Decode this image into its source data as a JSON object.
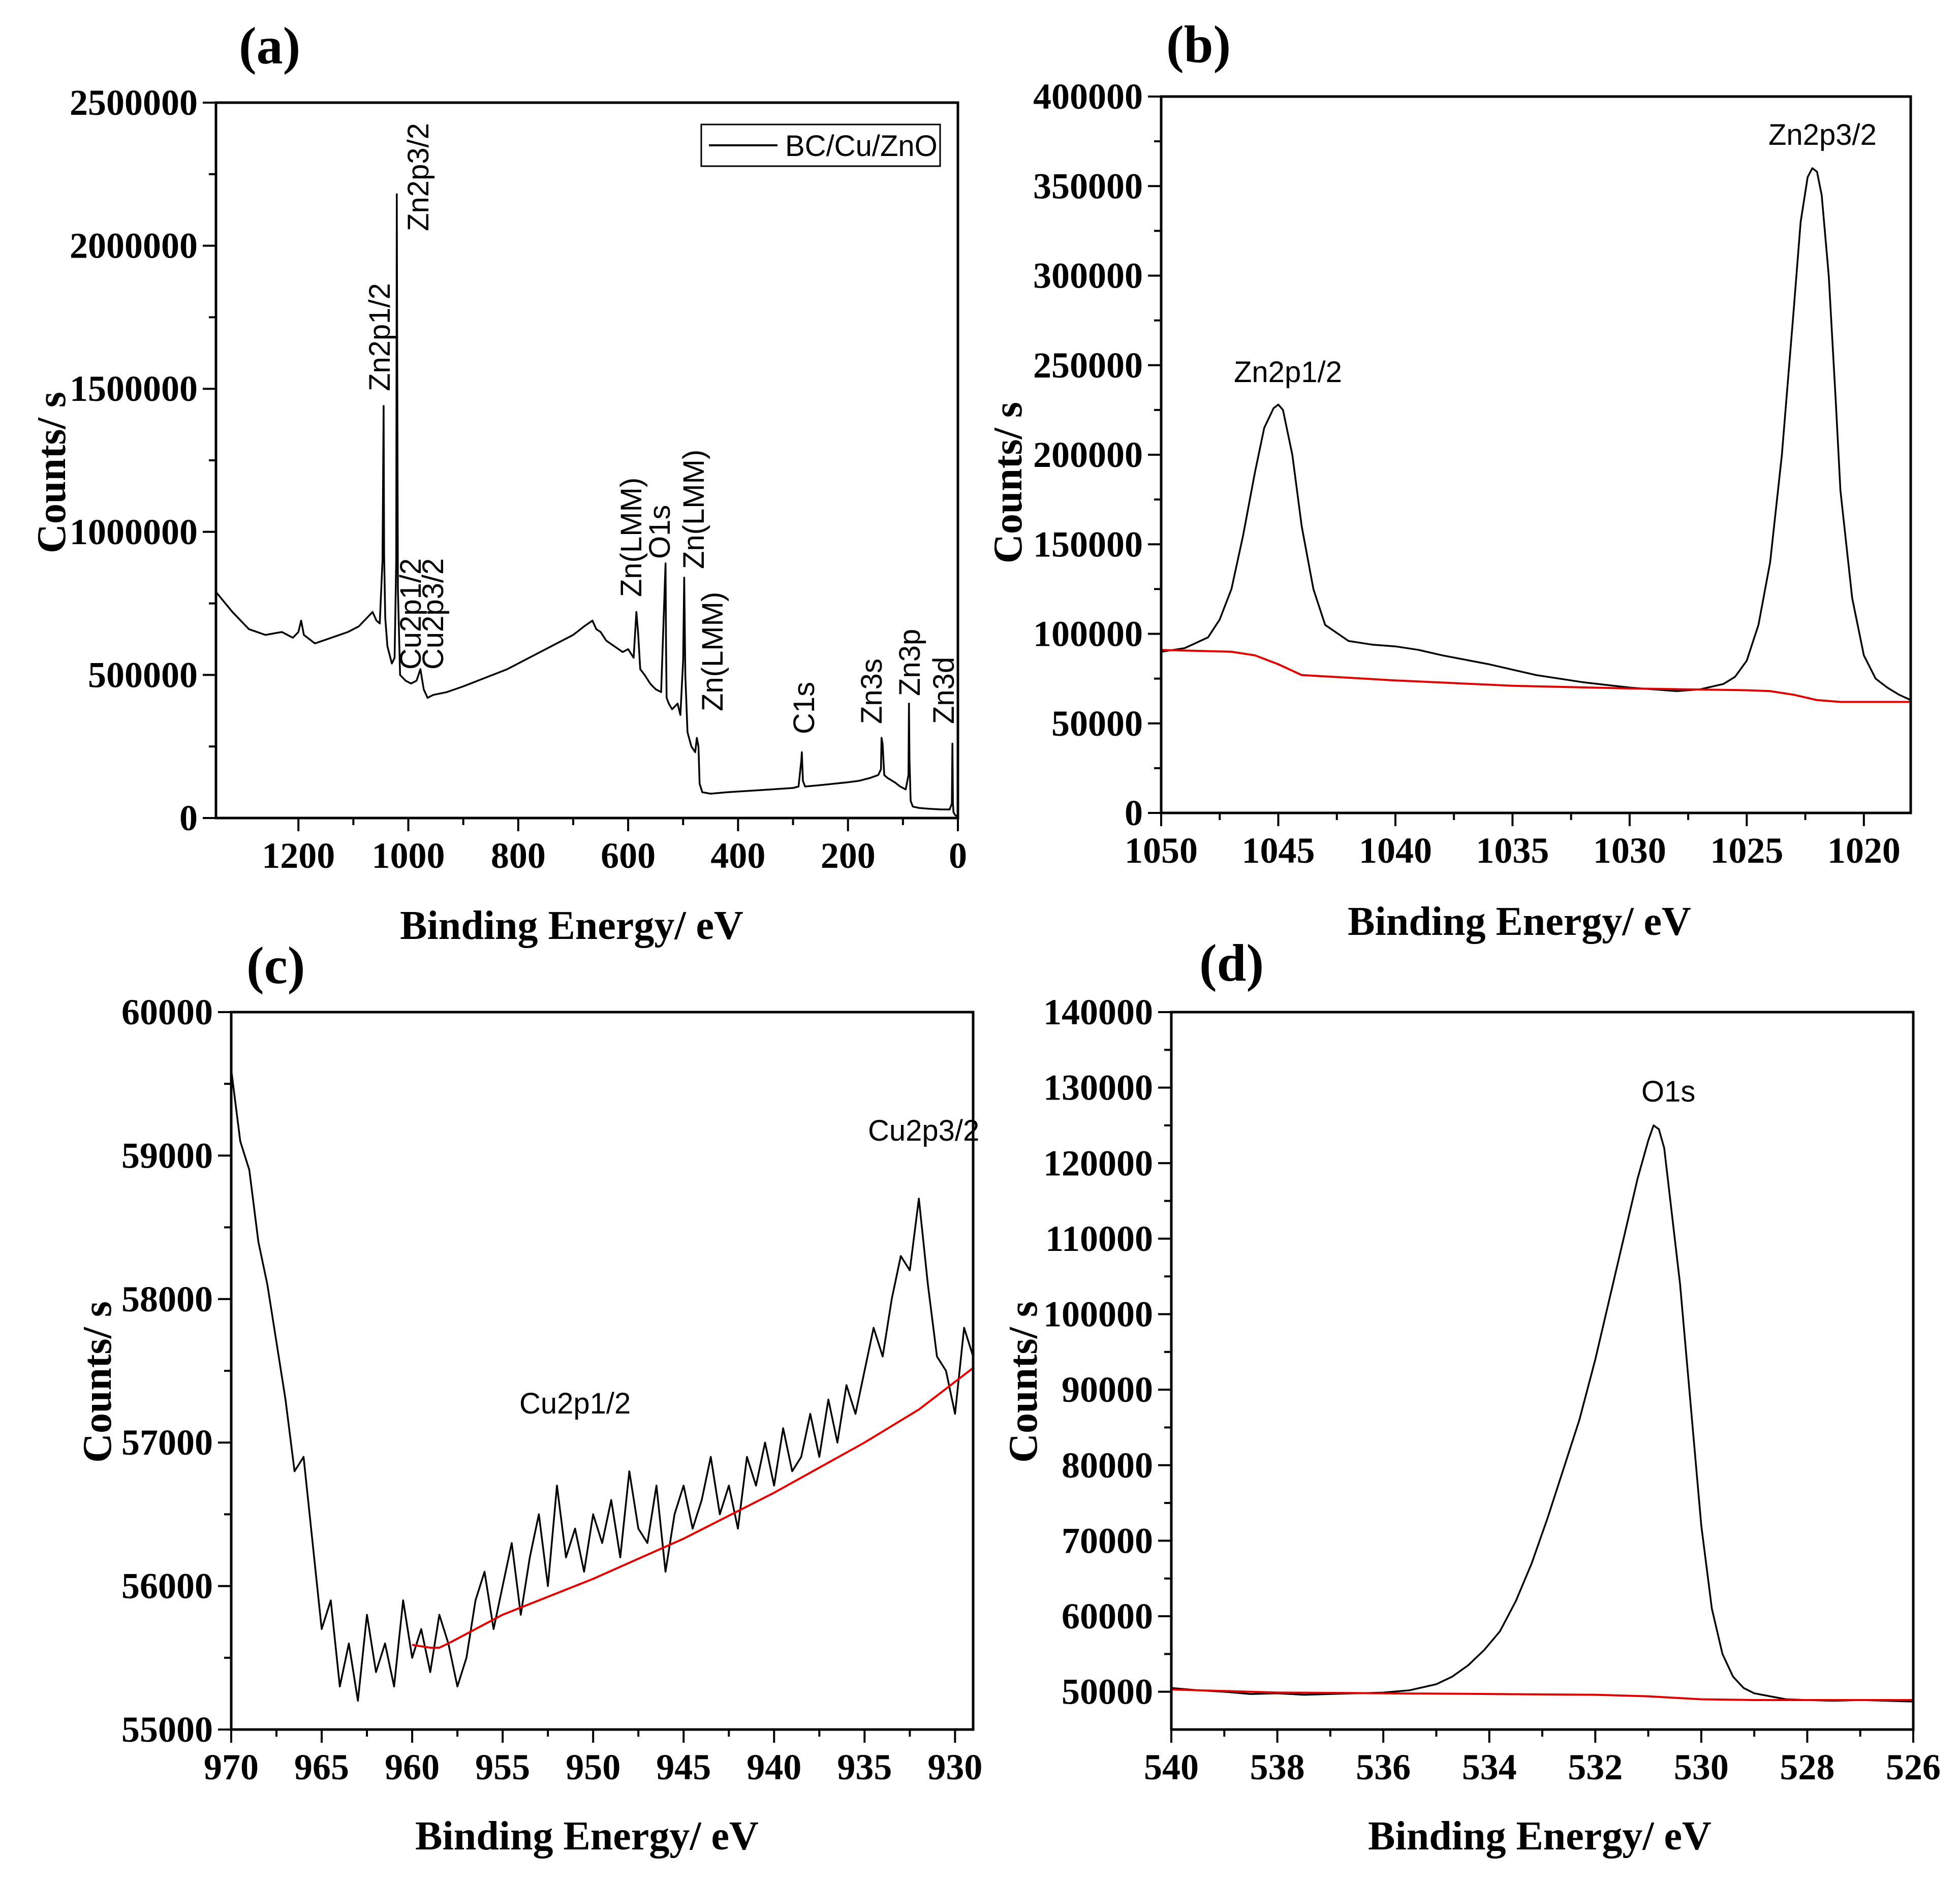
{
  "chart_data": [
    {
      "id": "a",
      "type": "line",
      "panel_label": "(a)",
      "title": "",
      "xlabel": "Binding Energy/ eV",
      "ylabel": "Counts/ s",
      "xlim": [
        1350,
        0
      ],
      "ylim": [
        0,
        2500000
      ],
      "xticks": [
        1200,
        1000,
        800,
        600,
        400,
        200,
        0
      ],
      "xtick_labels": [
        "1200",
        "1000",
        "800",
        "600",
        "400",
        "200",
        "0"
      ],
      "yticks": [
        0,
        500000,
        1000000,
        1500000,
        2000000,
        2500000
      ],
      "ytick_labels": [
        "0",
        "500000",
        "1000000",
        "1500000",
        "2000000",
        "2500000"
      ],
      "legend": [
        "BC/Cu/ZnO"
      ],
      "legend_position": "top-right",
      "series": [
        {
          "name": "BC/Cu/ZnO",
          "color": "#000000",
          "x": [
            1350,
            1320,
            1290,
            1260,
            1230,
            1210,
            1200,
            1195,
            1190,
            1170,
            1140,
            1110,
            1090,
            1075,
            1065,
            1058,
            1052,
            1047,
            1045,
            1044,
            1042,
            1038,
            1030,
            1025,
            1022,
            1021,
            1019,
            1015,
            1005,
            995,
            985,
            978,
            972,
            965,
            955,
            930,
            900,
            860,
            820,
            780,
            740,
            700,
            680,
            665,
            658,
            650,
            640,
            625,
            610,
            600,
            590,
            585,
            582,
            578,
            570,
            560,
            550,
            540,
            535,
            532,
            531,
            530,
            526,
            520,
            510,
            505,
            500,
            498,
            496,
            492,
            485,
            478,
            475,
            472,
            470,
            465,
            450,
            420,
            380,
            340,
            300,
            290,
            285,
            284,
            282,
            278,
            250,
            200,
            180,
            160,
            145,
            140,
            139,
            137,
            134,
            128,
            115,
            105,
            95,
            90,
            89,
            88,
            86,
            82,
            70,
            50,
            30,
            15,
            11,
            10,
            9,
            8,
            5,
            0
          ],
          "y": [
            790000,
            720000,
            660000,
            640000,
            650000,
            630000,
            650000,
            690000,
            640000,
            610000,
            630000,
            650000,
            670000,
            700000,
            720000,
            690000,
            680000,
            900000,
            1440000,
            920000,
            700000,
            600000,
            540000,
            560000,
            900000,
            2180000,
            800000,
            500000,
            480000,
            470000,
            480000,
            520000,
            450000,
            420000,
            430000,
            440000,
            460000,
            490000,
            520000,
            560000,
            600000,
            640000,
            670000,
            690000,
            660000,
            650000,
            620000,
            600000,
            580000,
            590000,
            560000,
            720000,
            650000,
            520000,
            500000,
            470000,
            450000,
            440000,
            720000,
            890000,
            600000,
            420000,
            400000,
            380000,
            400000,
            360000,
            550000,
            840000,
            500000,
            300000,
            250000,
            230000,
            280000,
            250000,
            120000,
            90000,
            85000,
            90000,
            95000,
            100000,
            105000,
            110000,
            200000,
            230000,
            130000,
            110000,
            115000,
            125000,
            130000,
            140000,
            150000,
            170000,
            280000,
            260000,
            150000,
            140000,
            125000,
            110000,
            100000,
            150000,
            400000,
            200000,
            60000,
            40000,
            35000,
            32000,
            30000,
            30000,
            50000,
            260000,
            50000,
            20000,
            10000,
            5000
          ]
        }
      ],
      "annotations": [
        "Zn2p3/2",
        "Zn2p1/2",
        "Cu2p1/2",
        "Cu2p3/2",
        "Zn(LMM)",
        "O1s",
        "Zn(LMM)",
        "Zn(LMM)",
        "C1s",
        "Zn3s",
        "Zn3p",
        "Zn3d"
      ]
    },
    {
      "id": "b",
      "type": "line",
      "panel_label": "(b)",
      "title": "",
      "xlabel": "Binding Energy/ eV",
      "ylabel": "Counts/ s",
      "xlim": [
        1050,
        1018
      ],
      "ylim": [
        0,
        400000
      ],
      "xticks": [
        1050,
        1045,
        1040,
        1035,
        1030,
        1025,
        1020
      ],
      "xtick_labels": [
        "1050",
        "1045",
        "1040",
        "1035",
        "1030",
        "1025",
        "1020"
      ],
      "yticks": [
        0,
        50000,
        100000,
        150000,
        200000,
        250000,
        300000,
        350000,
        400000
      ],
      "ytick_labels": [
        "0",
        "50000",
        "100000",
        "150000",
        "200000",
        "250000",
        "300000",
        "350000",
        "400000"
      ],
      "series": [
        {
          "name": "spectrum",
          "color": "#000000",
          "x": [
            1050,
            1049,
            1048,
            1047.5,
            1047,
            1046.5,
            1046,
            1045.6,
            1045.2,
            1045,
            1044.8,
            1044.4,
            1044,
            1043.5,
            1043,
            1042,
            1041,
            1040,
            1039,
            1038,
            1036,
            1034,
            1032,
            1030,
            1028,
            1027,
            1026,
            1025.5,
            1025,
            1024.5,
            1024,
            1023.5,
            1023,
            1022.7,
            1022.4,
            1022.2,
            1022,
            1021.8,
            1021.5,
            1021.2,
            1021,
            1020.5,
            1020,
            1019.5,
            1019,
            1018.5,
            1018
          ],
          "y": [
            90000,
            92000,
            98000,
            108000,
            125000,
            155000,
            190000,
            215000,
            226000,
            228000,
            225000,
            200000,
            160000,
            125000,
            105000,
            96000,
            94000,
            93000,
            91000,
            88000,
            83000,
            77000,
            73000,
            70000,
            68000,
            69000,
            72000,
            76000,
            85000,
            105000,
            140000,
            200000,
            280000,
            330000,
            355000,
            360000,
            358000,
            345000,
            300000,
            230000,
            180000,
            120000,
            88000,
            75000,
            70000,
            66000,
            63000
          ]
        },
        {
          "name": "background",
          "color": "#e00000",
          "x": [
            1050,
            1047,
            1046,
            1045,
            1044,
            1042,
            1040,
            1035,
            1030,
            1025,
            1024,
            1023,
            1022,
            1021,
            1020,
            1018
          ],
          "y": [
            91000,
            90000,
            88000,
            83000,
            77000,
            75500,
            74000,
            71000,
            69500,
            68500,
            68000,
            66000,
            63000,
            62000,
            62000,
            62000
          ]
        }
      ],
      "annotations": [
        "Zn2p3/2",
        "Zn2p1/2"
      ]
    },
    {
      "id": "c",
      "type": "line",
      "panel_label": "(c)",
      "title": "",
      "xlabel": "Binding Energy/ eV",
      "ylabel": "Counts/ s",
      "xlim": [
        970,
        929
      ],
      "ylim": [
        55000,
        60000
      ],
      "xticks": [
        970,
        965,
        960,
        955,
        950,
        945,
        940,
        935,
        930
      ],
      "xtick_labels": [
        "970",
        "965",
        "960",
        "955",
        "950",
        "945",
        "940",
        "935",
        "930"
      ],
      "yticks": [
        55000,
        56000,
        57000,
        58000,
        59000,
        60000
      ],
      "ytick_labels": [
        "55000",
        "56000",
        "57000",
        "58000",
        "59000",
        "60000"
      ],
      "series": [
        {
          "name": "spectrum",
          "color": "#000000",
          "x": [
            970,
            969.5,
            969,
            968.5,
            968,
            967.5,
            967,
            966.5,
            966,
            965.5,
            965,
            964.5,
            964,
            963.5,
            963,
            962.5,
            962,
            961.5,
            961,
            960.5,
            960,
            959.5,
            959,
            958.5,
            958,
            957.5,
            957,
            956.5,
            956,
            955.5,
            955,
            954.5,
            954,
            953.5,
            953,
            952.5,
            952,
            951.5,
            951,
            950.5,
            950,
            949.5,
            949,
            948.5,
            948,
            947.5,
            947,
            946.5,
            946,
            945.5,
            945,
            944.5,
            944,
            943.5,
            943,
            942.5,
            942,
            941.5,
            941,
            940.5,
            940,
            939.5,
            939,
            938.5,
            938,
            937.5,
            937,
            936.5,
            936,
            935.5,
            935,
            934.5,
            934,
            933.5,
            933,
            932.5,
            932,
            931.5,
            931,
            930.5,
            930,
            929.5,
            929
          ],
          "y": [
            59600,
            59100,
            58900,
            58400,
            58100,
            57700,
            57300,
            56800,
            56900,
            56300,
            55700,
            55900,
            55300,
            55600,
            55200,
            55800,
            55400,
            55600,
            55300,
            55900,
            55500,
            55700,
            55400,
            55800,
            55600,
            55300,
            55500,
            55900,
            56100,
            55700,
            56000,
            56300,
            55800,
            56200,
            56500,
            56000,
            56700,
            56200,
            56400,
            56100,
            56500,
            56300,
            56600,
            56200,
            56800,
            56400,
            56300,
            56700,
            56100,
            56500,
            56700,
            56400,
            56600,
            56900,
            56500,
            56700,
            56400,
            56900,
            56700,
            57000,
            56700,
            57100,
            56800,
            56900,
            57200,
            56900,
            57300,
            57000,
            57400,
            57200,
            57500,
            57800,
            57600,
            58000,
            58300,
            58200,
            58700,
            58100,
            57600,
            57500,
            57200,
            57800,
            57600
          ]
        },
        {
          "name": "background",
          "color": "#e00000",
          "x": [
            960,
            959,
            958.5,
            958,
            955,
            950,
            945,
            940,
            935,
            932,
            929
          ],
          "y": [
            55590,
            55570,
            55570,
            55600,
            55800,
            56050,
            56330,
            56650,
            57000,
            57230,
            57520
          ]
        }
      ],
      "annotations": [
        "Cu2p3/2",
        "Cu2p1/2"
      ]
    },
    {
      "id": "d",
      "type": "line",
      "panel_label": "(d)",
      "title": "",
      "xlabel": "Binding Energy/ eV",
      "ylabel": "Counts/ s",
      "xlim": [
        540,
        526
      ],
      "ylim": [
        45000,
        140000
      ],
      "xticks": [
        540,
        538,
        536,
        534,
        532,
        530,
        528,
        526
      ],
      "xtick_labels": [
        "540",
        "538",
        "536",
        "534",
        "532",
        "530",
        "528",
        "526"
      ],
      "yticks": [
        50000,
        60000,
        70000,
        80000,
        90000,
        100000,
        110000,
        120000,
        130000,
        140000
      ],
      "ytick_labels": [
        "50000",
        "60000",
        "70000",
        "80000",
        "90000",
        "100000",
        "110000",
        "120000",
        "130000",
        "140000"
      ],
      "series": [
        {
          "name": "spectrum",
          "color": "#000000",
          "x": [
            540,
            539.5,
            539,
            538.5,
            538,
            537.5,
            537,
            536.5,
            536,
            535.5,
            535,
            534.7,
            534.4,
            534.1,
            533.8,
            533.5,
            533.2,
            532.9,
            532.6,
            532.3,
            532,
            531.7,
            531.4,
            531.2,
            531,
            530.9,
            530.8,
            530.7,
            530.6,
            530.4,
            530.2,
            530,
            529.8,
            529.6,
            529.4,
            529.2,
            529,
            528.7,
            528.4,
            528,
            527.5,
            527,
            526.5,
            526
          ],
          "y": [
            50500,
            50200,
            50000,
            49700,
            49800,
            49600,
            49700,
            49800,
            49900,
            50200,
            51000,
            52000,
            53500,
            55500,
            58000,
            62000,
            67000,
            73000,
            79500,
            86000,
            94000,
            103000,
            112000,
            118000,
            123000,
            125000,
            124500,
            122000,
            116000,
            104000,
            88000,
            72000,
            61000,
            55000,
            52000,
            50500,
            49800,
            49400,
            49000,
            48900,
            48800,
            48900,
            48800,
            48700
          ]
        },
        {
          "name": "background",
          "color": "#e00000",
          "x": [
            540,
            538,
            536,
            534,
            532,
            531,
            530,
            529,
            528,
            526
          ],
          "y": [
            50300,
            49900,
            49800,
            49700,
            49600,
            49400,
            49000,
            48900,
            48900,
            48900
          ]
        }
      ],
      "annotations": [
        "O1s"
      ]
    }
  ]
}
